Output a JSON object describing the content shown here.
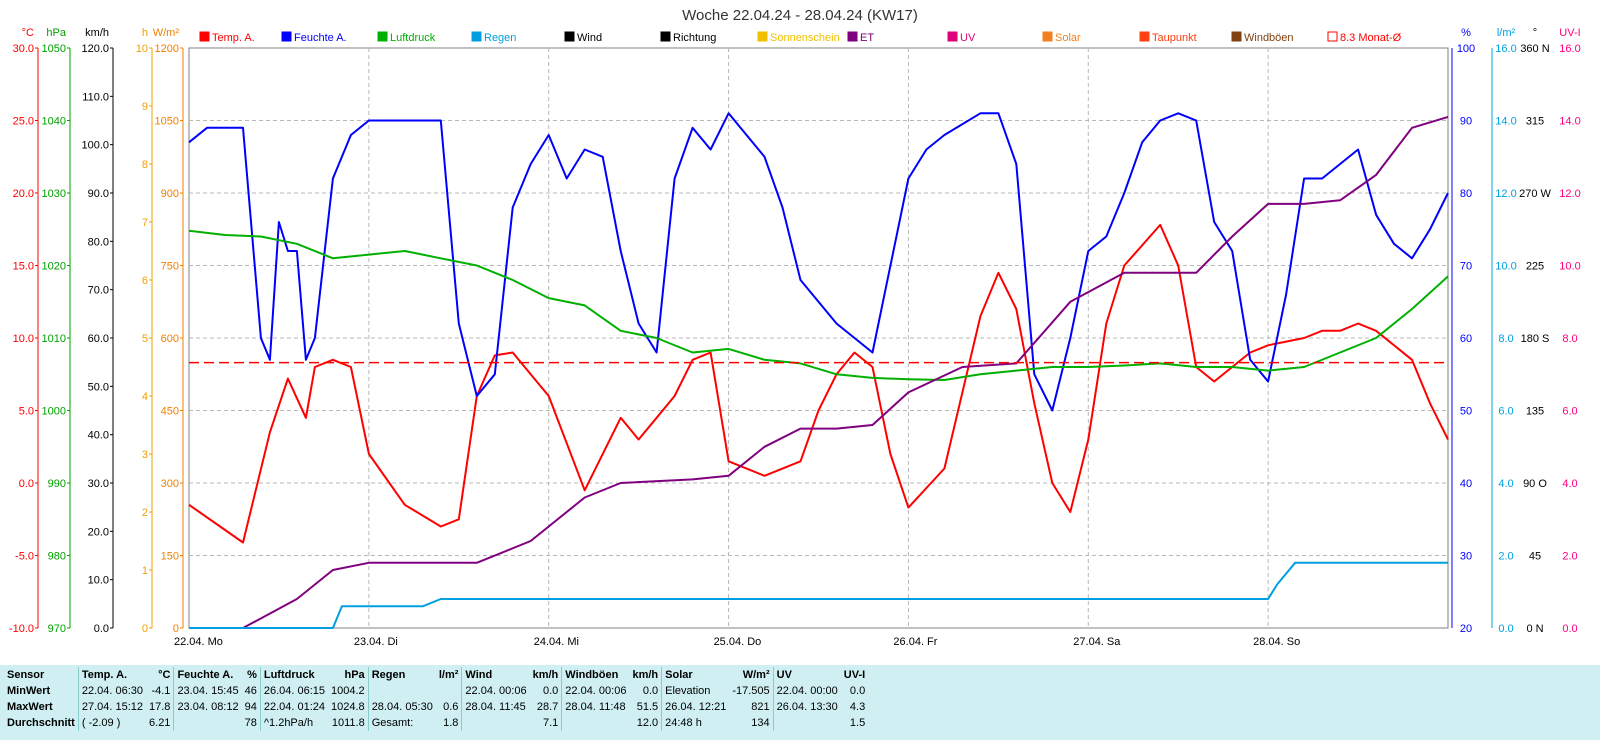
{
  "chart_data": {
    "type": "line",
    "title": "Woche 22.04.24 - 28.04.24 (KW17)",
    "days": [
      "22.04. Mo",
      "23.04. Di",
      "24.04. Mi",
      "25.04. Do",
      "26.04. Fr",
      "27.04. Sa",
      "28.04. So"
    ],
    "grid": true,
    "left_axes": [
      {
        "unit": "°C",
        "color": "#ff0000",
        "range": [
          -10,
          30
        ],
        "ticks": [
          "30.0",
          "25.0",
          "20.0",
          "15.0",
          "10.0",
          "5.0",
          "0.0",
          "-5.0",
          "-10.0"
        ]
      },
      {
        "unit": "hPa",
        "color": "#00a000",
        "range": [
          970,
          1050
        ],
        "ticks": [
          "1050",
          "1040",
          "1030",
          "1020",
          "1010",
          "1000",
          "990",
          "980",
          "970"
        ]
      },
      {
        "unit": "km/h",
        "color": "#000000",
        "range": [
          0,
          120
        ],
        "ticks": [
          "120.0",
          "110.0",
          "100.0",
          "90.0",
          "80.0",
          "70.0",
          "60.0",
          "50.0",
          "40.0",
          "30.0",
          "20.0",
          "10.0",
          "0.0"
        ]
      },
      {
        "unit": "h",
        "color": "#f0a000",
        "range": [
          0,
          10
        ],
        "ticks": [
          "10",
          "9",
          "8",
          "7",
          "6",
          "5",
          "4",
          "3",
          "2",
          "1",
          "0"
        ]
      },
      {
        "unit": "W/m²",
        "color": "#f08000",
        "range": [
          0,
          1200
        ],
        "ticks": [
          "1200",
          "1050",
          "900",
          "750",
          "600",
          "450",
          "300",
          "150",
          "0"
        ]
      }
    ],
    "right_axes": [
      {
        "unit": "%",
        "color": "#0000ff",
        "range": [
          20,
          100
        ],
        "ticks": [
          "100",
          "90",
          "80",
          "70",
          "60",
          "50",
          "40",
          "30",
          "20"
        ]
      },
      {
        "unit": "l/m²",
        "color": "#00a0e0",
        "range": [
          0,
          16
        ],
        "ticks": [
          "16.0",
          "14.0",
          "12.0",
          "10.0",
          "8.0",
          "6.0",
          "4.0",
          "2.0",
          "0.0"
        ]
      },
      {
        "unit": "°",
        "color": "#000000",
        "range": [
          0,
          360
        ],
        "ticks": [
          "360 N",
          "315",
          "270 W",
          "225",
          "180 S",
          "135",
          "90 O",
          "45",
          "0 N"
        ]
      },
      {
        "unit": "UV-I",
        "color": "#ff0080",
        "range": [
          0,
          16
        ],
        "ticks": [
          "16.0",
          "14.0",
          "12.0",
          "10.0",
          "8.0",
          "6.0",
          "4.0",
          "2.0",
          "0.0"
        ]
      }
    ],
    "legend": [
      {
        "name": "Temp. A.",
        "color": "#ff0000"
      },
      {
        "name": "Feuchte A.",
        "color": "#0000ff"
      },
      {
        "name": "Luftdruck",
        "color": "#00b000"
      },
      {
        "name": "Regen",
        "color": "#00a0e0"
      },
      {
        "name": "Wind",
        "color": "#000000"
      },
      {
        "name": "Richtung",
        "color": "#000000"
      },
      {
        "name": "Sonnenschein",
        "color": "#f0c000"
      },
      {
        "name": "ET",
        "color": "#800080"
      },
      {
        "name": "UV",
        "color": "#e0007a"
      },
      {
        "name": "Solar",
        "color": "#f08020"
      },
      {
        "name": "Taupunkt",
        "color": "#ff4010"
      },
      {
        "name": "Windböen",
        "color": "#804010"
      },
      {
        "name": "8.3 Monat-Ø",
        "color": "#ff0000"
      }
    ],
    "series": [
      {
        "name": "Temp. A.",
        "axis": "°C",
        "x": [
          0,
          0.3,
          0.45,
          0.55,
          0.65,
          0.7,
          0.8,
          0.9,
          1.0,
          1.2,
          1.4,
          1.5,
          1.6,
          1.7,
          1.8,
          2.0,
          2.2,
          2.4,
          2.5,
          2.6,
          2.7,
          2.8,
          2.9,
          3.0,
          3.2,
          3.4,
          3.5,
          3.6,
          3.7,
          3.8,
          3.9,
          4.0,
          4.2,
          4.4,
          4.5,
          4.6,
          4.7,
          4.8,
          4.9,
          5.0,
          5.1,
          5.2,
          5.4,
          5.5,
          5.6,
          5.7,
          5.8,
          5.9,
          6.0,
          6.2,
          6.3,
          6.4,
          6.5,
          6.6,
          6.8,
          6.9,
          7.0
        ],
        "values": [
          -1.5,
          -4.1,
          3.5,
          7.2,
          4.5,
          8.0,
          8.5,
          8.0,
          2.0,
          -1.5,
          -3.0,
          -2.5,
          6.0,
          8.8,
          9.0,
          6.0,
          -0.5,
          4.5,
          3.0,
          4.5,
          6.0,
          8.5,
          9.0,
          1.5,
          0.5,
          1.5,
          5.0,
          7.5,
          9.0,
          8.0,
          2.0,
          -1.7,
          1.0,
          11.5,
          14.5,
          12.0,
          5.5,
          0.0,
          -2.0,
          3.0,
          11.0,
          15.0,
          17.8,
          15.0,
          8.0,
          7.0,
          8.0,
          9.0,
          9.5,
          10.0,
          10.5,
          10.5,
          11.0,
          10.5,
          8.5,
          5.5,
          3.0
        ]
      },
      {
        "name": "Feuchte A.",
        "axis": "%",
        "x": [
          0,
          0.1,
          0.3,
          0.4,
          0.45,
          0.5,
          0.55,
          0.6,
          0.65,
          0.7,
          0.8,
          0.9,
          1.0,
          1.2,
          1.4,
          1.5,
          1.6,
          1.7,
          1.8,
          1.9,
          2.0,
          2.1,
          2.2,
          2.3,
          2.4,
          2.5,
          2.6,
          2.7,
          2.8,
          2.9,
          3.0,
          3.2,
          3.3,
          3.4,
          3.6,
          3.8,
          4.0,
          4.1,
          4.2,
          4.4,
          4.5,
          4.6,
          4.7,
          4.8,
          4.9,
          5.0,
          5.1,
          5.2,
          5.3,
          5.4,
          5.5,
          5.6,
          5.7,
          5.8,
          5.9,
          6.0,
          6.1,
          6.2,
          6.3,
          6.4,
          6.5,
          6.6,
          6.7,
          6.8,
          6.9,
          7.0
        ],
        "values": [
          87,
          89,
          89,
          60,
          57,
          76,
          72,
          72,
          57,
          60,
          82,
          88,
          90,
          90,
          90,
          62,
          52,
          55,
          78,
          84,
          88,
          82,
          86,
          85,
          72,
          62,
          58,
          82,
          89,
          86,
          91,
          85,
          78,
          68,
          62,
          58,
          82,
          86,
          88,
          91,
          91,
          84,
          55,
          50,
          60,
          72,
          74,
          80,
          87,
          90,
          91,
          90,
          76,
          72,
          57,
          54,
          66,
          82,
          82,
          84,
          86,
          77,
          73,
          71,
          75,
          80
        ]
      },
      {
        "name": "Luftdruck",
        "axis": "hPa",
        "x": [
          0,
          0.2,
          0.4,
          0.6,
          0.8,
          1.0,
          1.2,
          1.4,
          1.6,
          1.8,
          2.0,
          2.2,
          2.4,
          2.6,
          2.8,
          3.0,
          3.2,
          3.4,
          3.6,
          3.8,
          4.0,
          4.2,
          4.4,
          4.6,
          4.8,
          5.0,
          5.2,
          5.4,
          5.6,
          5.8,
          6.0,
          6.2,
          6.4,
          6.6,
          6.8,
          7.0
        ],
        "values": [
          1024.8,
          1024.2,
          1024.0,
          1023.0,
          1021.0,
          1021.5,
          1022.0,
          1021.0,
          1020.0,
          1018.0,
          1015.5,
          1014.5,
          1011.0,
          1010.0,
          1008.0,
          1008.5,
          1007.0,
          1006.5,
          1005.0,
          1004.5,
          1004.3,
          1004.2,
          1005.0,
          1005.5,
          1006.0,
          1006.0,
          1006.2,
          1006.5,
          1006.0,
          1006.0,
          1005.5,
          1006.0,
          1008.0,
          1010.0,
          1014.0,
          1018.5
        ]
      },
      {
        "name": "ET",
        "axis": "l/m²",
        "x": [
          0,
          0.3,
          0.6,
          0.8,
          1.0,
          1.3,
          1.6,
          1.9,
          2.2,
          2.4,
          2.8,
          3.0,
          3.2,
          3.4,
          3.6,
          3.8,
          4.0,
          4.3,
          4.6,
          4.9,
          5.2,
          5.4,
          5.6,
          5.8,
          6.0,
          6.2,
          6.4,
          6.6,
          6.8,
          7.0
        ],
        "values": [
          0,
          0,
          0.8,
          1.6,
          1.8,
          1.8,
          1.8,
          2.4,
          3.6,
          4.0,
          4.1,
          4.2,
          5.0,
          5.5,
          5.5,
          5.6,
          6.5,
          7.2,
          7.3,
          9.0,
          9.8,
          9.8,
          9.8,
          10.8,
          11.7,
          11.7,
          11.8,
          12.5,
          13.8,
          14.1
        ]
      },
      {
        "name": "Regen",
        "axis": "l/m²",
        "x": [
          0,
          0.6,
          0.8,
          0.85,
          1.0,
          1.3,
          1.4,
          1.5,
          2.0,
          3.0,
          4.0,
          5.0,
          6.0,
          6.05,
          6.1,
          6.15,
          6.2,
          6.5,
          7.0
        ],
        "values": [
          0,
          0,
          0,
          0.6,
          0.6,
          0.6,
          0.8,
          0.8,
          0.8,
          0.8,
          0.8,
          0.8,
          0.8,
          1.2,
          1.5,
          1.8,
          1.8,
          1.8,
          1.8
        ]
      },
      {
        "name": "Monat-Ø",
        "axis": "°C",
        "x": [
          0,
          7.0
        ],
        "values": [
          8.3,
          8.3
        ]
      }
    ]
  },
  "summary": {
    "sensor_hdr": "Sensor",
    "row_labels": [
      "MinWert",
      "MaxWert",
      "Durchschnitt"
    ],
    "groups": [
      {
        "name": "Temp. A.",
        "unit": "°C",
        "rows": [
          [
            "22.04.  06:30",
            "-4.1"
          ],
          [
            "27.04.  15:12",
            "17.8"
          ],
          [
            "( -2.09 )",
            "6.21"
          ]
        ]
      },
      {
        "name": "Feuchte A.",
        "unit": "%",
        "rows": [
          [
            "23.04.  15:45",
            "46"
          ],
          [
            "23.04.  08:12",
            "94"
          ],
          [
            "",
            "78"
          ]
        ]
      },
      {
        "name": "Luftdruck",
        "unit": "hPa",
        "rows": [
          [
            "26.04.  06:15",
            "1004.2"
          ],
          [
            "22.04.  01:24",
            "1024.8"
          ],
          [
            "^1.2hPa/h",
            "1011.8"
          ]
        ]
      },
      {
        "name": "Regen",
        "unit": "l/m²",
        "rows": [
          [
            "",
            ""
          ],
          [
            "28.04.  05:30",
            "0.6"
          ],
          [
            "Gesamt:",
            "1.8"
          ]
        ]
      },
      {
        "name": "Wind",
        "unit": "km/h",
        "rows": [
          [
            "22.04.  00:06",
            "0.0"
          ],
          [
            "28.04.  11:45",
            "28.7"
          ],
          [
            "",
            "7.1"
          ]
        ]
      },
      {
        "name": "Windböen",
        "unit": "km/h",
        "rows": [
          [
            "22.04.  00:06",
            "0.0"
          ],
          [
            "28.04.  11:48",
            "51.5"
          ],
          [
            "",
            "12.0"
          ]
        ]
      },
      {
        "name": "Solar",
        "unit": "W/m²",
        "rows": [
          [
            "Elevation",
            "-17.505"
          ],
          [
            "26.04.  12:21",
            "821"
          ],
          [
            "24:48 h",
            "134"
          ]
        ]
      },
      {
        "name": "UV",
        "unit": "UV-I",
        "rows": [
          [
            "22.04.  00:00",
            "0.0"
          ],
          [
            "26.04.  13:30",
            "4.3"
          ],
          [
            "",
            "1.5"
          ]
        ]
      }
    ]
  }
}
